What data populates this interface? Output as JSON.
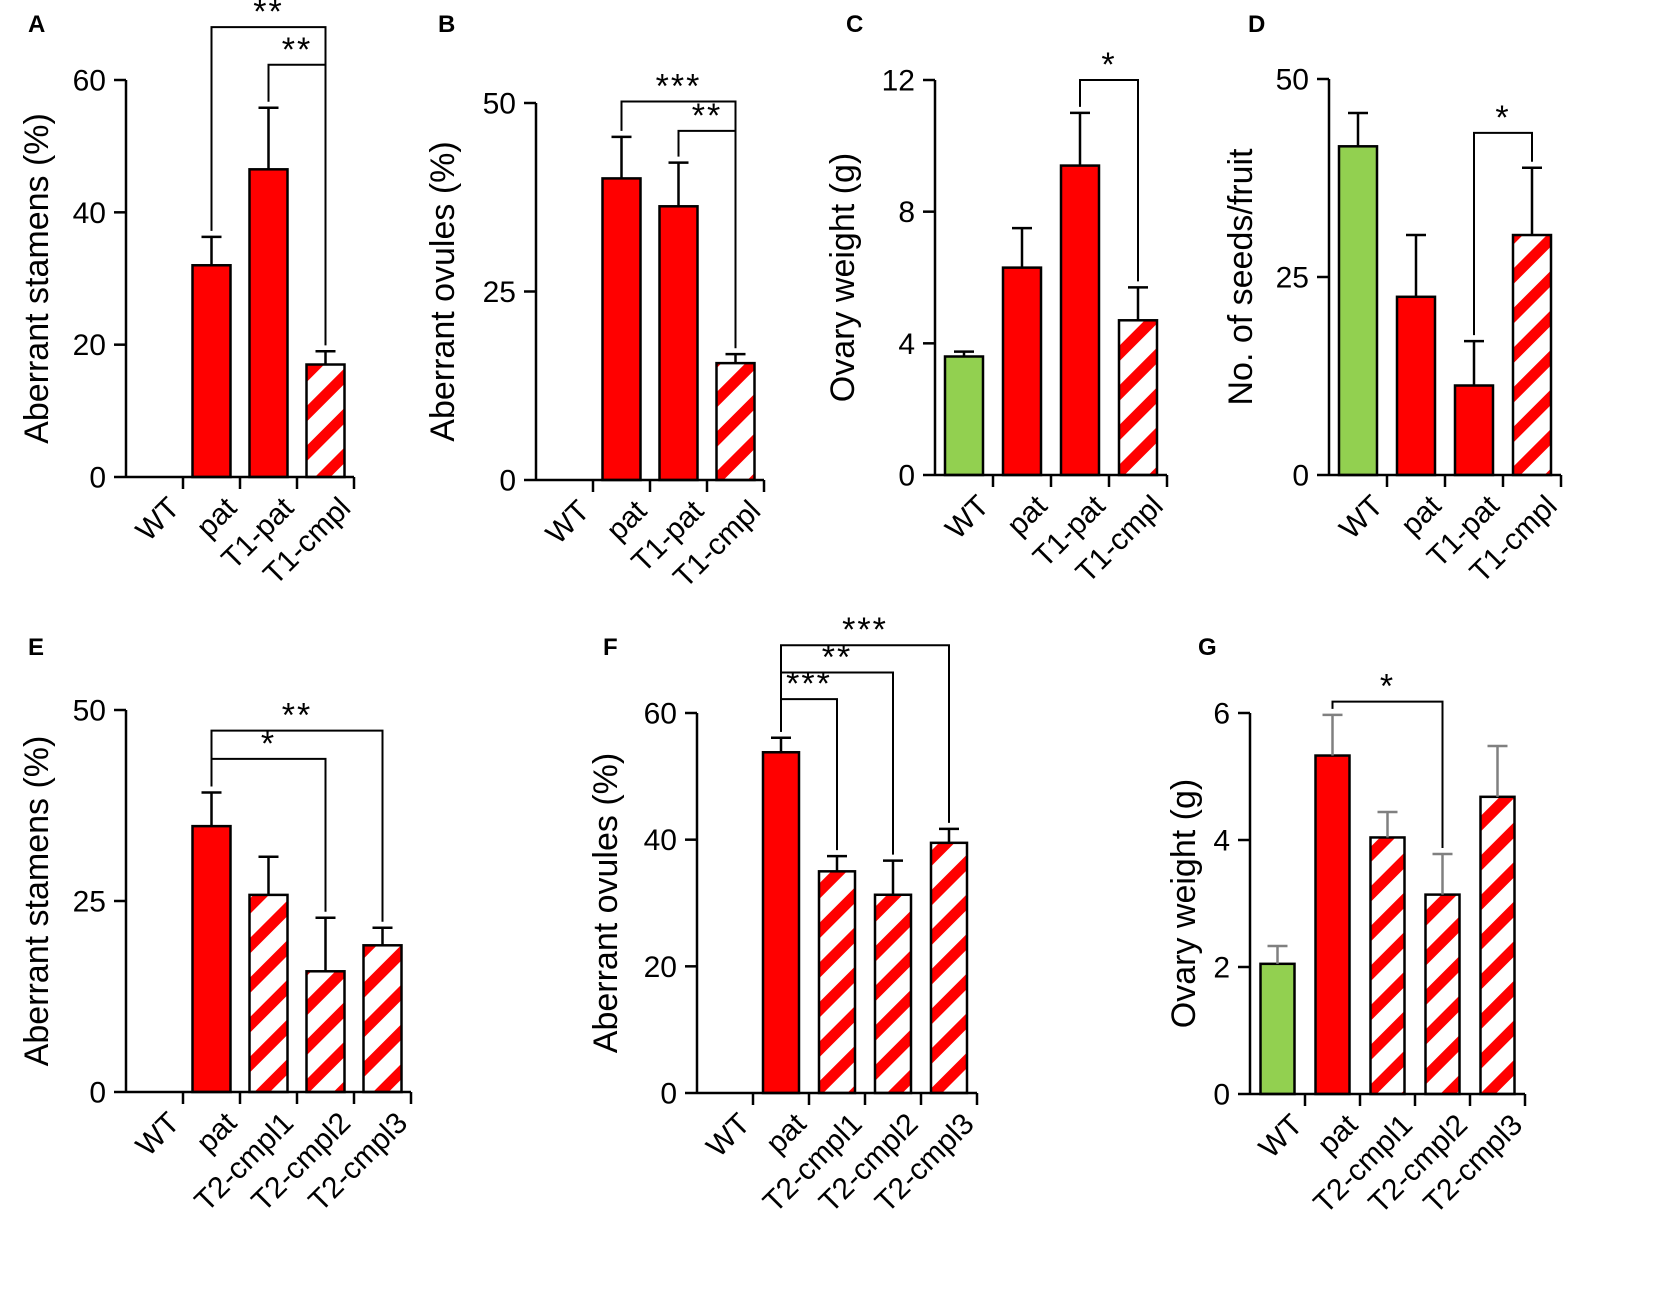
{
  "colors": {
    "red": "#ff0000",
    "green": "#92d050",
    "white": "#ffffff",
    "black": "#000000"
  },
  "chart_data": [
    {
      "type": "bar",
      "panel": "A",
      "title": "",
      "xlabel": "",
      "ylabel": "Aberrant stamens (%)",
      "ylim": [
        0,
        60
      ],
      "yticks": [
        0,
        20,
        40,
        60
      ],
      "categories": [
        "WT",
        "pat",
        "T1-pat",
        "T1-cmpl"
      ],
      "values": [
        0,
        32,
        46.5,
        17
      ],
      "errors": [
        0,
        4.3,
        9.3,
        2
      ],
      "fills": [
        "none",
        "red",
        "red",
        "stripe"
      ],
      "significance": [
        {
          "from": 1,
          "to": 3,
          "label": "**",
          "bracket_y": 68
        },
        {
          "from": 2,
          "to": 3,
          "label": "**",
          "bracket_y": 62.3
        }
      ]
    },
    {
      "type": "bar",
      "panel": "B",
      "title": "",
      "xlabel": "",
      "ylabel": "Aberrant ovules (%)",
      "ylim": [
        0,
        50
      ],
      "yticks": [
        0,
        25,
        50
      ],
      "categories": [
        "WT",
        "pat",
        "T1-pat",
        "T1-cmpl"
      ],
      "values": [
        0,
        40,
        36.3,
        15.5
      ],
      "errors": [
        0,
        5.5,
        5.8,
        1.2
      ],
      "fills": [
        "none",
        "red",
        "red",
        "stripe"
      ],
      "significance": [
        {
          "from": 1,
          "to": 3,
          "label": "***",
          "bracket_y": 50.2
        },
        {
          "from": 2,
          "to": 3,
          "label": "**",
          "bracket_y": 46.3
        }
      ]
    },
    {
      "type": "bar",
      "panel": "C",
      "title": "",
      "xlabel": "",
      "ylabel": "Ovary weight (g)",
      "ylim": [
        0,
        12
      ],
      "yticks": [
        0,
        4,
        8,
        12
      ],
      "categories": [
        "WT",
        "pat",
        "T1-pat",
        "T1-cmpl"
      ],
      "values": [
        3.6,
        6.3,
        9.4,
        4.7
      ],
      "errors": [
        0.15,
        1.2,
        1.6,
        1.0
      ],
      "fills": [
        "green",
        "red",
        "red",
        "stripe"
      ],
      "significance": [
        {
          "from": 2,
          "to": 3,
          "label": "*",
          "bracket_y": 12.0
        }
      ]
    },
    {
      "type": "bar",
      "panel": "D",
      "title": "",
      "xlabel": "",
      "ylabel": "No. of seeds/fruit",
      "ylim": [
        0,
        50
      ],
      "yticks": [
        0,
        25,
        50
      ],
      "categories": [
        "WT",
        "pat",
        "T1-pat",
        "T1-cmpl"
      ],
      "values": [
        41.5,
        22.5,
        11.3,
        30.3
      ],
      "errors": [
        4.2,
        7.8,
        5.6,
        8.5
      ],
      "fills": [
        "green",
        "red",
        "red",
        "stripe"
      ],
      "significance": [
        {
          "from": 2,
          "to": 3,
          "label": "*",
          "bracket_y": 43.2
        }
      ]
    },
    {
      "type": "bar",
      "panel": "E",
      "title": "",
      "xlabel": "",
      "ylabel": "Aberrant stamens (%)",
      "ylim": [
        0,
        50
      ],
      "yticks": [
        0,
        25,
        50
      ],
      "categories": [
        "WT",
        "pat",
        "T2-cmpl1",
        "T2-cmpl2",
        "T2-cmpl3"
      ],
      "values": [
        0,
        34.8,
        25.8,
        15.8,
        19.2
      ],
      "errors": [
        0,
        4.4,
        5.0,
        7.0,
        2.3
      ],
      "fills": [
        "none",
        "red",
        "stripe",
        "stripe",
        "stripe"
      ],
      "significance": [
        {
          "from": 1,
          "to": 3,
          "label": "*",
          "bracket_y": 43.6
        },
        {
          "from": 1,
          "to": 4,
          "label": "**",
          "bracket_y": 47.3
        }
      ]
    },
    {
      "type": "bar",
      "panel": "F",
      "title": "",
      "xlabel": "",
      "ylabel": "Aberrant ovules (%)",
      "ylim": [
        0,
        60
      ],
      "yticks": [
        0,
        20,
        40,
        60
      ],
      "categories": [
        "WT",
        "pat",
        "T2-cmpl1",
        "T2-cmpl2",
        "T2-cmpl3"
      ],
      "values": [
        0,
        53.8,
        35.0,
        31.3,
        39.5
      ],
      "errors": [
        0,
        2.3,
        2.4,
        5.4,
        2.2
      ],
      "fills": [
        "none",
        "red",
        "stripe",
        "stripe",
        "stripe"
      ],
      "significance": [
        {
          "from": 1,
          "to": 2,
          "label": "***",
          "bracket_y": 62.2
        },
        {
          "from": 1,
          "to": 3,
          "label": "**",
          "bracket_y": 66.4
        },
        {
          "from": 1,
          "to": 4,
          "label": "***",
          "bracket_y": 70.7
        }
      ]
    },
    {
      "type": "bar",
      "panel": "G",
      "title": "",
      "xlabel": "",
      "ylabel": "Ovary weight (g)",
      "ylim": [
        0,
        6
      ],
      "yticks": [
        0,
        2,
        4,
        6
      ],
      "categories": [
        "WT",
        "pat",
        "T2-cmpl1",
        "T2-cmpl2",
        "T2-cmpl3"
      ],
      "values": [
        2.05,
        5.33,
        4.04,
        3.14,
        4.68
      ],
      "errors": [
        0.28,
        0.64,
        0.4,
        0.64,
        0.8
      ],
      "fills": [
        "green",
        "red",
        "stripe",
        "stripe",
        "stripe"
      ],
      "errorbar_color": "gray",
      "significance": [
        {
          "from": 1,
          "to": 3,
          "label": "*",
          "bracket_y": 6.18
        }
      ]
    }
  ]
}
